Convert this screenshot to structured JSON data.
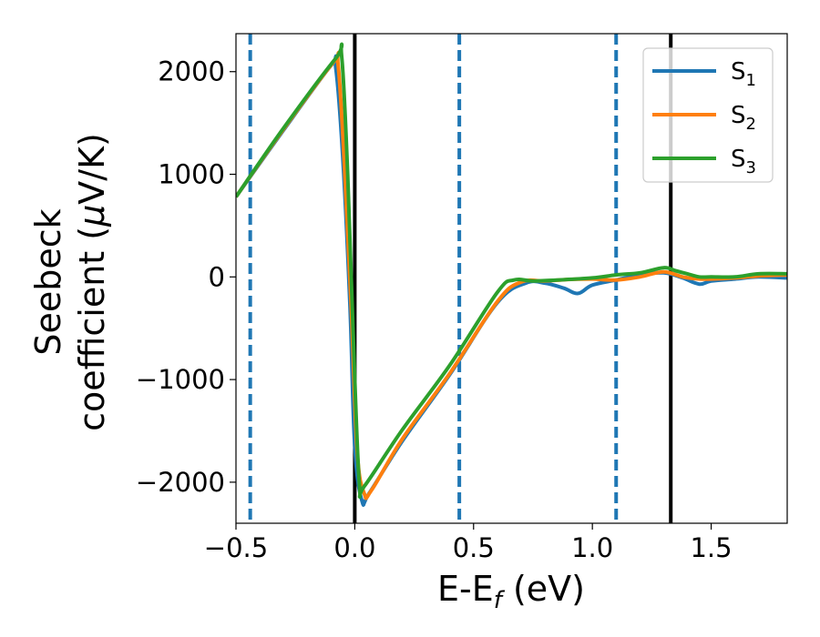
{
  "chart_data": {
    "type": "line",
    "xlabel": "E-E",
    "xlabel_sub": "f",
    "xlabel_unit": " (eV)",
    "ylabel_line1": "Seebeck",
    "ylabel_line2": "coefficient  (",
    "ylabel_mu": "μ",
    "ylabel_unit": "V/K)",
    "xlim": [
      -0.5,
      1.82
    ],
    "ylim": [
      -2400,
      2370
    ],
    "xticks": [
      -0.5,
      0.0,
      0.5,
      1.0,
      1.5
    ],
    "xtick_labels": [
      "−0.5",
      "0.0",
      "0.5",
      "1.0",
      "1.5"
    ],
    "yticks": [
      -2000,
      -1000,
      0,
      1000,
      2000
    ],
    "ytick_labels": [
      "−2000",
      "−1000",
      "0",
      "1000",
      "2000"
    ],
    "grid": false,
    "legend_position": "top-right",
    "vlines_solid": [
      0.0,
      1.33
    ],
    "vlines_dashed": [
      -0.44,
      0.44,
      1.1
    ],
    "vline_solid_color": "#000000",
    "vline_dashed_color": "#1f77b4",
    "series": [
      {
        "name": "S",
        "subscript": "1",
        "color": "#1f77b4",
        "x": [
          -0.5,
          -0.3,
          -0.1,
          -0.08,
          -0.05,
          -0.02,
          0.0,
          0.03,
          0.06,
          0.2,
          0.4,
          0.6,
          0.72,
          0.8,
          0.88,
          0.94,
          1.0,
          1.1,
          1.2,
          1.3,
          1.38,
          1.45,
          1.5,
          1.6,
          1.7,
          1.82
        ],
        "values": [
          780,
          1430,
          2060,
          2040,
          1150,
          -300,
          -1650,
          -2180,
          -2110,
          -1600,
          -950,
          -250,
          -60,
          -60,
          -110,
          -160,
          -80,
          -30,
          20,
          40,
          -10,
          -70,
          -40,
          -20,
          0,
          -10
        ]
      },
      {
        "name": "S",
        "subscript": "2",
        "color": "#ff7f0e",
        "x": [
          -0.5,
          -0.3,
          -0.09,
          -0.07,
          -0.045,
          -0.015,
          0.01,
          0.04,
          0.07,
          0.2,
          0.4,
          0.6,
          0.7,
          0.8,
          0.9,
          1.0,
          1.1,
          1.2,
          1.3,
          1.38,
          1.45,
          1.5,
          1.6,
          1.7,
          1.82
        ],
        "values": [
          780,
          1440,
          2090,
          2070,
          1150,
          -300,
          -1700,
          -2110,
          -2080,
          -1580,
          -940,
          -240,
          -50,
          -40,
          -25,
          -20,
          -30,
          0,
          50,
          0,
          -20,
          -20,
          -10,
          10,
          20
        ]
      },
      {
        "name": "S",
        "subscript": "3",
        "color": "#2ca02c",
        "x": [
          -0.5,
          -0.3,
          -0.08,
          -0.055,
          -0.03,
          0.0,
          0.02,
          0.04,
          0.2,
          0.4,
          0.6,
          0.67,
          0.75,
          0.85,
          1.0,
          1.1,
          1.2,
          1.3,
          1.35,
          1.4,
          1.45,
          1.5,
          1.6,
          1.7,
          1.82
        ],
        "values": [
          780,
          1450,
          2130,
          2150,
          1000,
          -1000,
          -2030,
          -2040,
          -1490,
          -860,
          -150,
          -30,
          -40,
          -30,
          -10,
          20,
          40,
          90,
          60,
          30,
          0,
          0,
          0,
          30,
          30
        ]
      }
    ]
  }
}
